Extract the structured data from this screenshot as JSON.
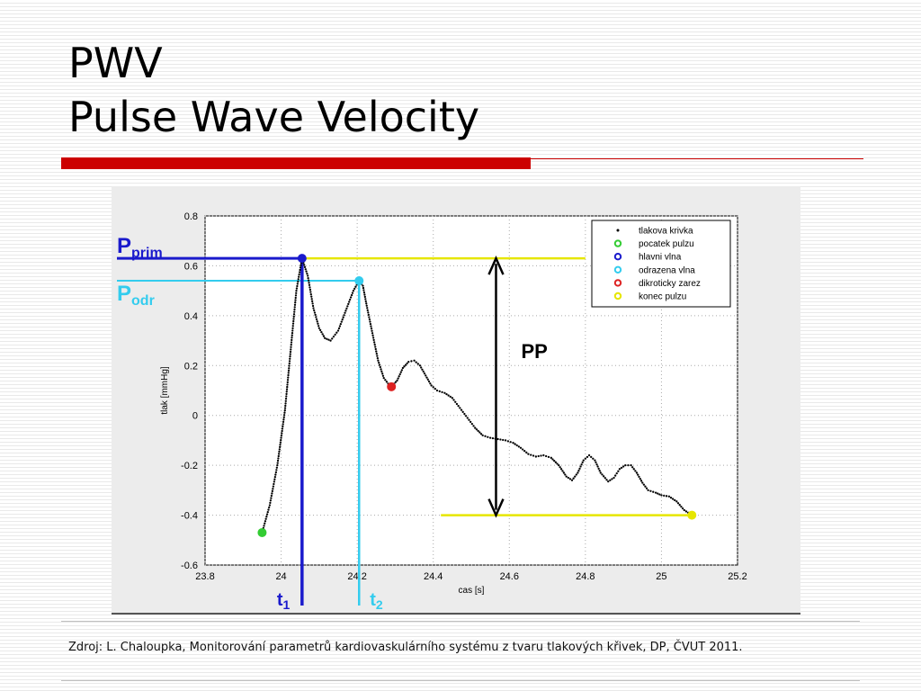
{
  "slide": {
    "title_line1": "PWV",
    "title_line2": "Pulse Wave Velocity",
    "source_note": "Zdroj: L. Chaloupka, Monitorování parametrů kardiovaskulárního systému z tvaru tlakových křivek, DP, ČVUT 2011."
  },
  "colors": {
    "accent_red": "#cc0000",
    "curve": "#000000",
    "p_prim_line": "#1a1acc",
    "p_odr_line": "#33ccee",
    "pulse_level_line": "#e6e600",
    "start_marker": "#33cc33",
    "main_wave_marker": "#1a1acc",
    "reflected_marker": "#33ccee",
    "dicrotic_marker": "#dd2222",
    "end_marker": "#e6e600"
  },
  "chart_data": {
    "type": "scatter",
    "xlabel": "cas [s]",
    "ylabel": "tlak [mmHg]",
    "xlim": [
      23.8,
      25.2
    ],
    "ylim": [
      -0.6,
      0.8
    ],
    "xticks": [
      "23.8",
      "24",
      "24.2",
      "24.4",
      "24.6",
      "24.8",
      "25",
      "25.2"
    ],
    "yticks": [
      "0.8",
      "0.6",
      "0.4",
      "0.2",
      "0",
      "-0.2",
      "-0.4",
      "-0.6"
    ],
    "grid": true,
    "legend_position": "top-right",
    "legend": [
      {
        "label": "tlakova krivka",
        "marker": "dot",
        "color": "#000000"
      },
      {
        "label": "pocatek pulzu",
        "marker": "circle",
        "color": "#33cc33"
      },
      {
        "label": "hlavni vlna",
        "marker": "circle",
        "color": "#1a1acc"
      },
      {
        "label": "odrazena vlna",
        "marker": "circle",
        "color": "#33ccee"
      },
      {
        "label": "dikroticky zarez",
        "marker": "circle",
        "color": "#dd2222"
      },
      {
        "label": "konec pulzu",
        "marker": "circle",
        "color": "#e6e600"
      }
    ],
    "pressure_curve": [
      [
        23.95,
        -0.47
      ],
      [
        23.97,
        -0.36
      ],
      [
        23.99,
        -0.2
      ],
      [
        24.01,
        0.02
      ],
      [
        24.02,
        0.18
      ],
      [
        24.03,
        0.34
      ],
      [
        24.04,
        0.5
      ],
      [
        24.055,
        0.63
      ],
      [
        24.07,
        0.56
      ],
      [
        24.085,
        0.43
      ],
      [
        24.1,
        0.35
      ],
      [
        24.115,
        0.31
      ],
      [
        24.13,
        0.3
      ],
      [
        24.15,
        0.34
      ],
      [
        24.17,
        0.42
      ],
      [
        24.19,
        0.5
      ],
      [
        24.205,
        0.54
      ],
      [
        24.215,
        0.52
      ],
      [
        24.225,
        0.44
      ],
      [
        24.24,
        0.33
      ],
      [
        24.255,
        0.22
      ],
      [
        24.27,
        0.15
      ],
      [
        24.285,
        0.12
      ],
      [
        24.29,
        0.115
      ],
      [
        24.305,
        0.14
      ],
      [
        24.32,
        0.19
      ],
      [
        24.335,
        0.215
      ],
      [
        24.35,
        0.22
      ],
      [
        24.365,
        0.2
      ],
      [
        24.38,
        0.16
      ],
      [
        24.395,
        0.12
      ],
      [
        24.41,
        0.1
      ],
      [
        24.43,
        0.09
      ],
      [
        24.45,
        0.07
      ],
      [
        24.47,
        0.03
      ],
      [
        24.49,
        -0.01
      ],
      [
        24.51,
        -0.05
      ],
      [
        24.53,
        -0.08
      ],
      [
        24.55,
        -0.09
      ],
      [
        24.57,
        -0.095
      ],
      [
        24.59,
        -0.1
      ],
      [
        24.61,
        -0.11
      ],
      [
        24.63,
        -0.13
      ],
      [
        24.65,
        -0.155
      ],
      [
        24.67,
        -0.165
      ],
      [
        24.69,
        -0.16
      ],
      [
        24.71,
        -0.17
      ],
      [
        24.73,
        -0.2
      ],
      [
        24.75,
        -0.245
      ],
      [
        24.765,
        -0.26
      ],
      [
        24.78,
        -0.23
      ],
      [
        24.795,
        -0.18
      ],
      [
        24.81,
        -0.16
      ],
      [
        24.825,
        -0.18
      ],
      [
        24.84,
        -0.23
      ],
      [
        24.86,
        -0.265
      ],
      [
        24.875,
        -0.25
      ],
      [
        24.89,
        -0.215
      ],
      [
        24.905,
        -0.2
      ],
      [
        24.92,
        -0.2
      ],
      [
        24.935,
        -0.23
      ],
      [
        24.95,
        -0.27
      ],
      [
        24.965,
        -0.3
      ],
      [
        24.985,
        -0.31
      ],
      [
        25.0,
        -0.32
      ],
      [
        25.02,
        -0.325
      ],
      [
        25.04,
        -0.345
      ],
      [
        25.06,
        -0.38
      ],
      [
        25.08,
        -0.4
      ]
    ],
    "markers": [
      {
        "name": "pocatek pulzu",
        "x": 23.95,
        "y": -0.47
      },
      {
        "name": "hlavni vlna",
        "x": 24.055,
        "y": 0.63
      },
      {
        "name": "odrazena vlna",
        "x": 24.205,
        "y": 0.54
      },
      {
        "name": "dikroticky zarez",
        "x": 24.29,
        "y": 0.115
      },
      {
        "name": "konec pulzu",
        "x": 25.08,
        "y": -0.4
      }
    ],
    "annotations": {
      "p_prim": {
        "base": "P",
        "sub": "prim",
        "y": 0.63
      },
      "p_odr": {
        "base": "P",
        "sub": "odr",
        "y": 0.54
      },
      "t1": {
        "base": "t",
        "sub": "1",
        "x": 24.055
      },
      "t2": {
        "base": "t",
        "sub": "2",
        "x": 24.205
      },
      "pp": {
        "label": "PP",
        "x": 24.565,
        "y_top": 0.63,
        "y_bottom": -0.4
      }
    }
  }
}
